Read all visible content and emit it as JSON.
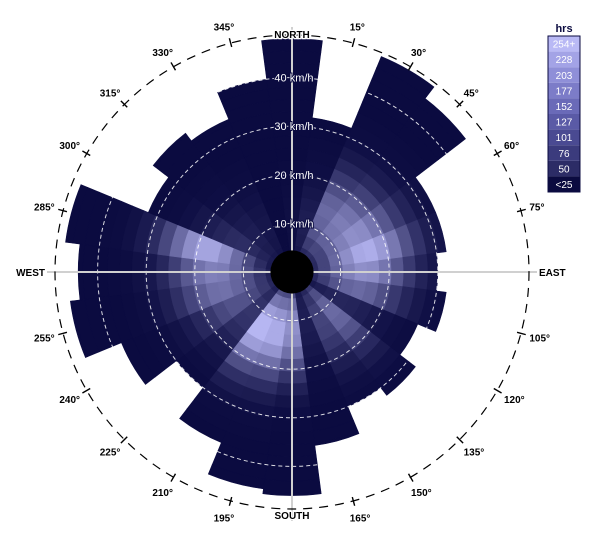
{
  "chart_data": {
    "type": "heatmap",
    "subtype": "polar wind rose",
    "direction_labels": [
      "NORTH",
      "EAST",
      "SOUTH",
      "WEST"
    ],
    "bearing_labels": [
      "15°",
      "30°",
      "45°",
      "60°",
      "75°",
      "105°",
      "120°",
      "135°",
      "150°",
      "165°",
      "195°",
      "210°",
      "225°",
      "240°",
      "255°",
      "285°",
      "300°",
      "315°",
      "330°",
      "345°"
    ],
    "speed_ring_labels": [
      "10 km/h",
      "20 km/h",
      "30 km/h",
      "40 km/h"
    ],
    "speed_ring_values_kmh": [
      10,
      20,
      30,
      40
    ],
    "sector_width_deg": 15,
    "bin_width_kmh": 2.5,
    "calm_center_radius_kmh": 3,
    "sector_max_speed_kmh": [
      48,
      32,
      48,
      45,
      32,
      32,
      30,
      32,
      28,
      32,
      30,
      36,
      46,
      45,
      38,
      30,
      38,
      46,
      44,
      47,
      32,
      36,
      34,
      40
    ],
    "sector_peak_hours": [
      30,
      50,
      150,
      175,
      200,
      240,
      200,
      150,
      60,
      150,
      100,
      50,
      200,
      240,
      254,
      80,
      120,
      160,
      180,
      230,
      70,
      50,
      40,
      20
    ],
    "sector_peak_speed_kmh": [
      10,
      10,
      14,
      14,
      15,
      16,
      15,
      14,
      12,
      12,
      12,
      10,
      12,
      13,
      13,
      12,
      13,
      15,
      16,
      18,
      12,
      10,
      10,
      8
    ],
    "legend": {
      "title": "hrs",
      "labels": [
        "254+",
        "228",
        "203",
        "177",
        "152",
        "127",
        "101",
        "76",
        "50",
        "<25"
      ],
      "colors": [
        "#b9b9f5",
        "#a3a3e6",
        "#8f8fd8",
        "#7c7cc8",
        "#6a6ab8",
        "#5a5aa6",
        "#4a4a92",
        "#3b3b7d",
        "#2c2c66",
        "#0b0b40"
      ]
    },
    "colors": {
      "calm_center": "#000000",
      "axis": "#d0d0d0",
      "ring_dash": "#ffffff",
      "compass_ring": "#000000"
    }
  }
}
